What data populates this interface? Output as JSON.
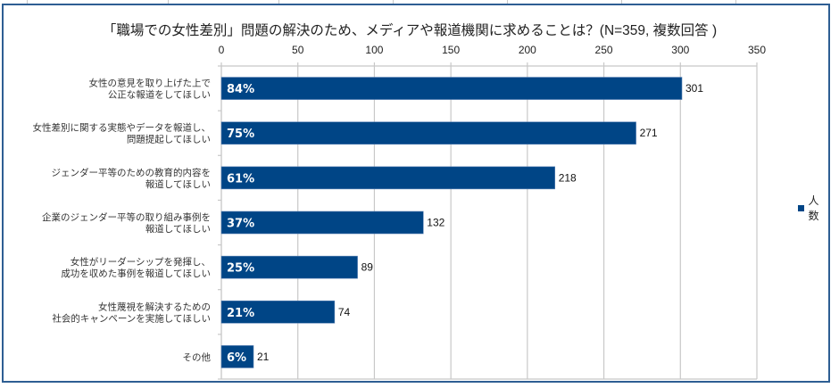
{
  "chart_data": {
    "type": "bar",
    "orientation": "horizontal",
    "title": "「職場での女性差別」問題の解決のため、メディアや報道機関に求めることは？(N=359, 複数回答 )",
    "categories": [
      [
        "女性の意見を取り上げた上で",
        "公正な報道をしてほしい"
      ],
      [
        "女性差別に関する実態やデータを報道し、",
        "問題提起してほしい"
      ],
      [
        "ジェンダー平等のための教育的内容を",
        "報道してほしい"
      ],
      [
        "企業のジェンダー平等の取り組み事例を",
        "報道してほしい"
      ],
      [
        "女性がリーダーシップを発揮し、",
        "成功を収めた事例を報道してほしい"
      ],
      [
        "女性蔑視を解決するための",
        "社会的キャンペーンを実施してほしい"
      ],
      [
        "その他"
      ]
    ],
    "series": [
      {
        "name": "人数",
        "values": [
          301,
          271,
          218,
          132,
          89,
          74,
          21
        ],
        "percent_labels": [
          "84%",
          "75%",
          "61%",
          "37%",
          "25%",
          "21%",
          "6%"
        ],
        "color": "#004586"
      }
    ],
    "xlim": [
      0,
      350
    ],
    "xticks": [
      0,
      50,
      100,
      150,
      200,
      250,
      300,
      350
    ],
    "xtick_labels": [
      "0",
      "50",
      "100",
      "150",
      "200",
      "250",
      "300",
      "350"
    ],
    "xlabel": "",
    "ylabel": "",
    "grid": true,
    "legend": {
      "position": "right",
      "entries": [
        "人数"
      ]
    }
  }
}
